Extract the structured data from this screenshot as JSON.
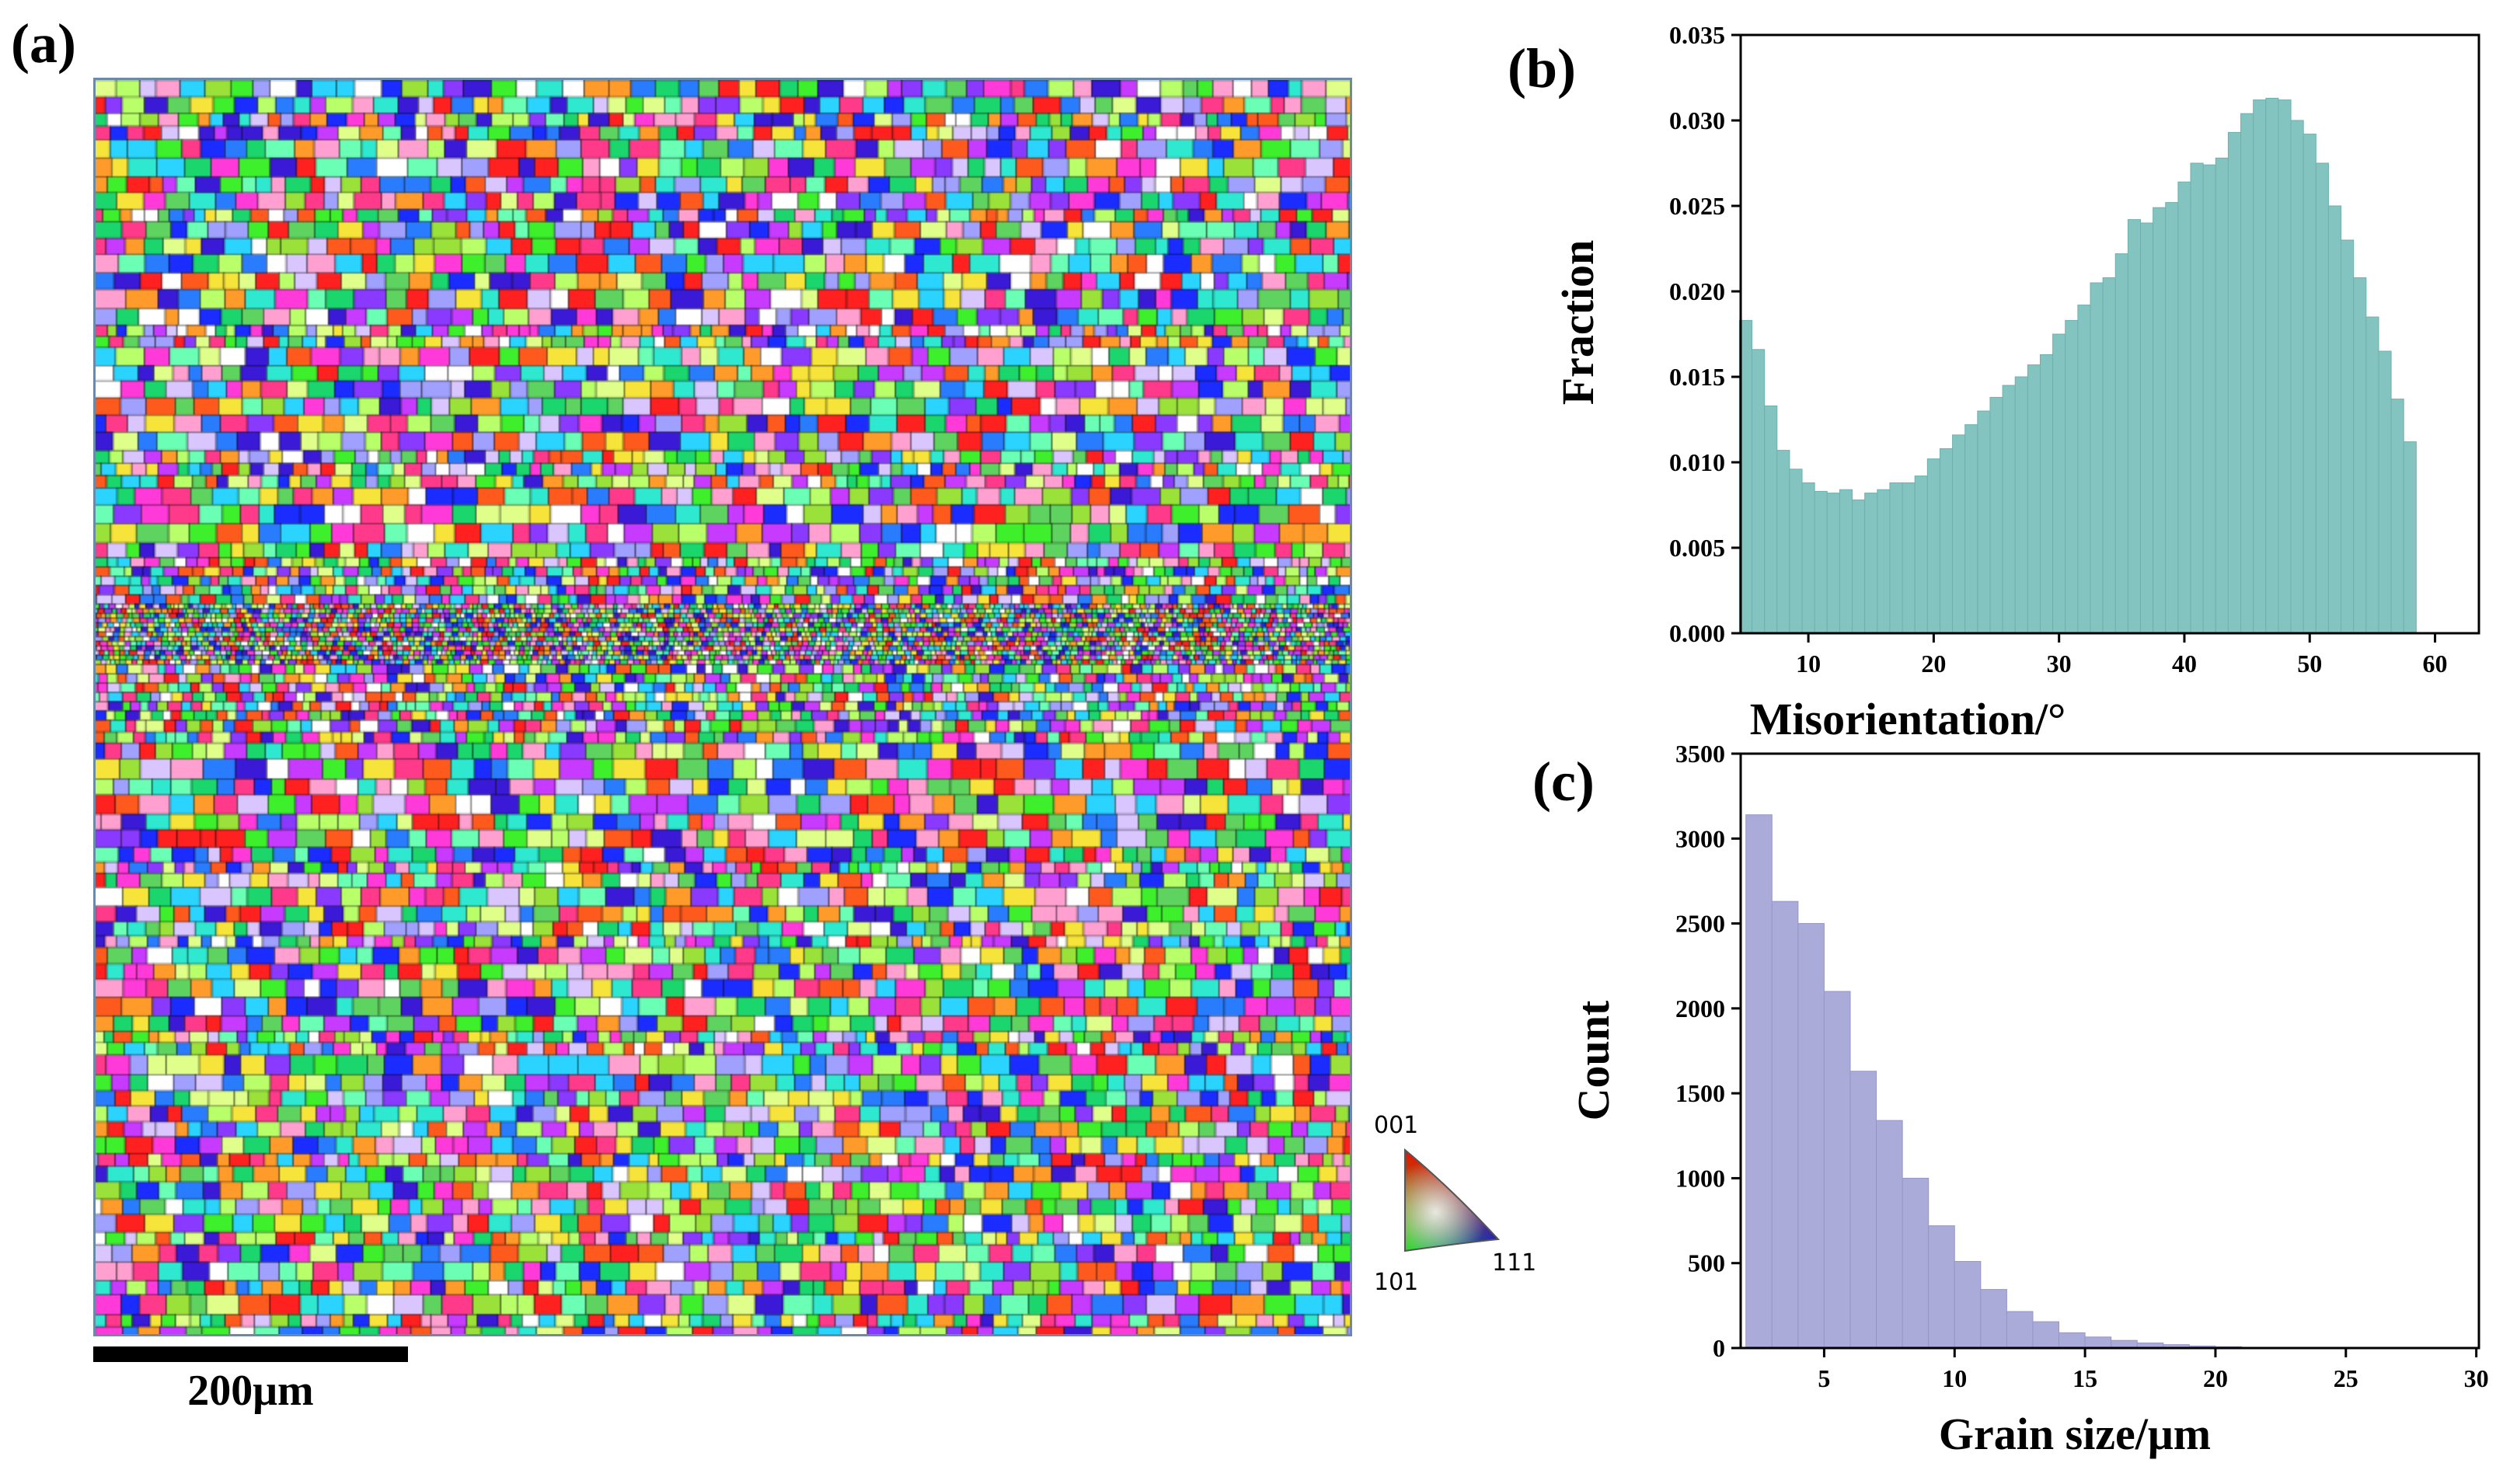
{
  "panels": {
    "a": {
      "label": "(a)",
      "scale_bar_label": "200μm"
    },
    "b": {
      "label": "(b)"
    },
    "c": {
      "label": "(c)"
    }
  },
  "ipf_key": {
    "labels": {
      "top": "001",
      "bottom_left": "101",
      "bottom_right": "111"
    },
    "colors": {
      "001": "#ff0000",
      "101": "#00ff00",
      "111": "#0000ff"
    }
  },
  "colors": {
    "misorientation_bars": "#83c4c1",
    "misorientation_bar_edge": "#6fb0ad",
    "grain_size_bars": "#aaabd9",
    "grain_size_bar_edge": "#9596c8",
    "axis": "#000000"
  },
  "chart_data": [
    {
      "id": "b",
      "type": "bar",
      "title": "",
      "xlabel": "Misorientation/°",
      "ylabel": "Fraction",
      "xlim": [
        4.6,
        63.5
      ],
      "ylim": [
        0,
        0.035
      ],
      "xticks": [
        10,
        20,
        30,
        40,
        50,
        60
      ],
      "yticks": [
        0.0,
        0.005,
        0.01,
        0.015,
        0.02,
        0.025,
        0.03,
        0.035
      ],
      "ytick_labels": [
        "0.000",
        "0.005",
        "0.010",
        "0.015",
        "0.020",
        "0.025",
        "0.030",
        "0.035"
      ],
      "bin_width": 1,
      "x": [
        5,
        6,
        7,
        8,
        9,
        10,
        11,
        12,
        13,
        14,
        15,
        16,
        17,
        18,
        19,
        20,
        21,
        22,
        23,
        24,
        25,
        26,
        27,
        28,
        29,
        30,
        31,
        32,
        33,
        34,
        35,
        36,
        37,
        38,
        39,
        40,
        41,
        42,
        43,
        44,
        45,
        46,
        47,
        48,
        49,
        50,
        51,
        52,
        53,
        54,
        55,
        56,
        57,
        58
      ],
      "values": [
        0.0183,
        0.0166,
        0.0133,
        0.0107,
        0.0096,
        0.0088,
        0.0083,
        0.0082,
        0.0084,
        0.0078,
        0.0082,
        0.0084,
        0.0088,
        0.0088,
        0.0092,
        0.0102,
        0.0108,
        0.0116,
        0.0122,
        0.013,
        0.0138,
        0.0145,
        0.015,
        0.0157,
        0.0163,
        0.0175,
        0.0183,
        0.0192,
        0.0205,
        0.0208,
        0.0222,
        0.0242,
        0.024,
        0.0249,
        0.0252,
        0.0264,
        0.0275,
        0.0274,
        0.0278,
        0.0293,
        0.0304,
        0.0312,
        0.0313,
        0.0312,
        0.03,
        0.0292,
        0.0275,
        0.025,
        0.023,
        0.0208,
        0.0185,
        0.0165,
        0.0137,
        0.0112
      ]
    },
    {
      "id": "c",
      "type": "bar",
      "title": "",
      "xlabel": "Grain size/μm",
      "ylabel": "Count",
      "xlim": [
        1.8,
        30.1
      ],
      "ylim": [
        0,
        3500
      ],
      "xticks": [
        5,
        10,
        15,
        20,
        25,
        30
      ],
      "yticks": [
        0,
        500,
        1000,
        1500,
        2000,
        2500,
        3000,
        3500
      ],
      "ytick_labels": [
        "0",
        "500",
        "1000",
        "1500",
        "2000",
        "2500",
        "3000",
        "3500"
      ],
      "bin_width": 1,
      "x": [
        2.5,
        3.5,
        4.5,
        5.5,
        6.5,
        7.5,
        8.5,
        9.5,
        10.5,
        11.5,
        12.5,
        13.5,
        14.5,
        15.5,
        16.5,
        17.5,
        18.5,
        19.5,
        20.5,
        21.5
      ],
      "values": [
        3140,
        2630,
        2500,
        2100,
        1630,
        1340,
        1000,
        720,
        510,
        345,
        215,
        155,
        90,
        65,
        45,
        30,
        20,
        12,
        8,
        4
      ]
    }
  ]
}
